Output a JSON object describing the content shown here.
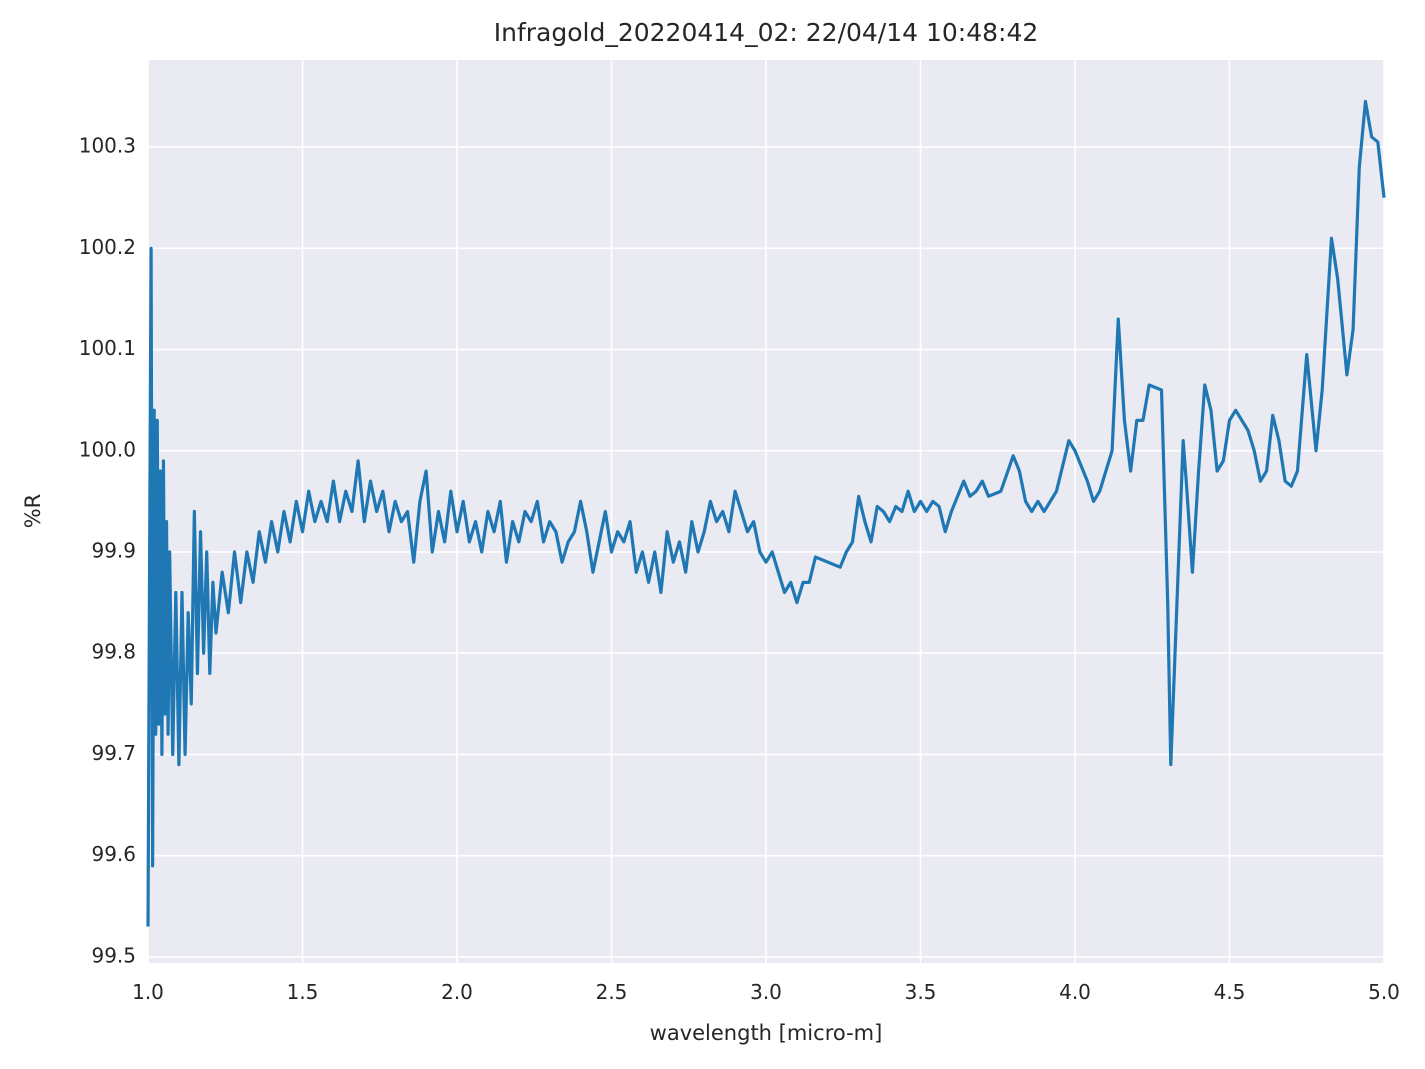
{
  "chart_data": {
    "type": "line",
    "title": "Infragold_20220414_02:  22/04/14 10:48:42",
    "xlabel": "wavelength [micro-m]",
    "ylabel": "%R",
    "xlim": [
      1.0,
      5.0
    ],
    "ylim": [
      99.494,
      100.386
    ],
    "xticks": [
      {
        "value": 1.0,
        "label": "1.0"
      },
      1.5,
      {
        "value": 2.0,
        "label": "2.0"
      },
      2.5,
      {
        "value": 3.0,
        "label": "3.0"
      },
      3.5,
      {
        "value": 4.0,
        "label": "4.0"
      },
      4.5,
      {
        "value": 5.0,
        "label": "5.0"
      }
    ],
    "yticks": [
      99.5,
      99.6,
      99.7,
      99.8,
      99.9,
      {
        "value": 100.0,
        "label": "100.0"
      },
      100.1,
      100.2,
      100.3
    ],
    "grid": true,
    "x": [
      1.0,
      1.005,
      1.01,
      1.015,
      1.02,
      1.025,
      1.03,
      1.035,
      1.04,
      1.045,
      1.05,
      1.055,
      1.06,
      1.065,
      1.07,
      1.08,
      1.09,
      1.1,
      1.11,
      1.12,
      1.13,
      1.14,
      1.15,
      1.16,
      1.17,
      1.18,
      1.19,
      1.2,
      1.21,
      1.22,
      1.24,
      1.26,
      1.28,
      1.3,
      1.32,
      1.34,
      1.36,
      1.38,
      1.4,
      1.42,
      1.44,
      1.46,
      1.48,
      1.5,
      1.52,
      1.54,
      1.56,
      1.58,
      1.6,
      1.62,
      1.64,
      1.66,
      1.68,
      1.7,
      1.72,
      1.74,
      1.76,
      1.78,
      1.8,
      1.82,
      1.84,
      1.86,
      1.88,
      1.9,
      1.92,
      1.94,
      1.96,
      1.98,
      2.0,
      2.02,
      2.04,
      2.06,
      2.08,
      2.1,
      2.12,
      2.14,
      2.16,
      2.18,
      2.2,
      2.22,
      2.24,
      2.26,
      2.28,
      2.3,
      2.32,
      2.34,
      2.36,
      2.38,
      2.4,
      2.42,
      2.44,
      2.46,
      2.48,
      2.5,
      2.52,
      2.54,
      2.56,
      2.58,
      2.6,
      2.62,
      2.64,
      2.66,
      2.68,
      2.7,
      2.72,
      2.74,
      2.76,
      2.78,
      2.8,
      2.82,
      2.84,
      2.86,
      2.88,
      2.9,
      2.92,
      2.94,
      2.96,
      2.98,
      3.0,
      3.02,
      3.04,
      3.06,
      3.08,
      3.1,
      3.12,
      3.14,
      3.16,
      3.2,
      3.24,
      3.26,
      3.28,
      3.3,
      3.32,
      3.34,
      3.36,
      3.38,
      3.4,
      3.42,
      3.44,
      3.46,
      3.48,
      3.5,
      3.52,
      3.54,
      3.56,
      3.58,
      3.6,
      3.64,
      3.66,
      3.68,
      3.7,
      3.72,
      3.76,
      3.8,
      3.82,
      3.84,
      3.86,
      3.88,
      3.9,
      3.94,
      3.98,
      4.0,
      4.04,
      4.06,
      4.08,
      4.1,
      4.12,
      4.14,
      4.16,
      4.18,
      4.2,
      4.22,
      4.24,
      4.28,
      4.3,
      4.31,
      4.33,
      4.35,
      4.36,
      4.38,
      4.4,
      4.42,
      4.44,
      4.46,
      4.48,
      4.5,
      4.52,
      4.54,
      4.56,
      4.58,
      4.6,
      4.62,
      4.64,
      4.66,
      4.68,
      4.7,
      4.72,
      4.75,
      4.78,
      4.8,
      4.83,
      4.85,
      4.88,
      4.9,
      4.92,
      4.94,
      4.96,
      4.98,
      5.0
    ],
    "series": [
      {
        "name": "%R",
        "color": "#1f77b4",
        "values": [
          99.53,
          99.88,
          100.2,
          99.59,
          100.04,
          99.72,
          100.03,
          99.73,
          99.98,
          99.7,
          99.99,
          99.74,
          99.93,
          99.72,
          99.9,
          99.7,
          99.86,
          99.69,
          99.86,
          99.7,
          99.84,
          99.75,
          99.94,
          99.78,
          99.92,
          99.8,
          99.9,
          99.78,
          99.87,
          99.82,
          99.88,
          99.84,
          99.9,
          99.85,
          99.9,
          99.87,
          99.92,
          99.89,
          99.93,
          99.9,
          99.94,
          99.91,
          99.95,
          99.92,
          99.96,
          99.93,
          99.95,
          99.93,
          99.97,
          99.93,
          99.96,
          99.94,
          99.99,
          99.93,
          99.97,
          99.94,
          99.96,
          99.92,
          99.95,
          99.93,
          99.94,
          99.89,
          99.95,
          99.98,
          99.9,
          99.94,
          99.91,
          99.96,
          99.92,
          99.95,
          99.91,
          99.93,
          99.9,
          99.94,
          99.92,
          99.95,
          99.89,
          99.93,
          99.91,
          99.94,
          99.93,
          99.95,
          99.91,
          99.93,
          99.92,
          99.89,
          99.91,
          99.92,
          99.95,
          99.92,
          99.88,
          99.91,
          99.94,
          99.9,
          99.92,
          99.91,
          99.93,
          99.88,
          99.9,
          99.87,
          99.9,
          99.86,
          99.92,
          99.89,
          99.91,
          99.88,
          99.93,
          99.9,
          99.92,
          99.95,
          99.93,
          99.94,
          99.92,
          99.96,
          99.94,
          99.92,
          99.93,
          99.9,
          99.89,
          99.9,
          99.88,
          99.86,
          99.87,
          99.85,
          99.87,
          99.87,
          99.895,
          99.89,
          99.885,
          99.9,
          99.91,
          99.955,
          99.93,
          99.91,
          99.945,
          99.94,
          99.93,
          99.945,
          99.94,
          99.96,
          99.94,
          99.95,
          99.94,
          99.95,
          99.945,
          99.92,
          99.94,
          99.97,
          99.955,
          99.96,
          99.97,
          99.955,
          99.96,
          99.995,
          99.98,
          99.95,
          99.94,
          99.95,
          99.94,
          99.96,
          100.01,
          100.0,
          99.97,
          99.95,
          99.96,
          99.98,
          100.0,
          100.13,
          100.03,
          99.98,
          100.03,
          100.03,
          100.065,
          100.06,
          99.85,
          99.69,
          99.85,
          100.01,
          99.97,
          99.88,
          99.98,
          100.065,
          100.04,
          99.98,
          99.99,
          100.03,
          100.04,
          100.03,
          100.02,
          100.0,
          99.97,
          99.98,
          100.035,
          100.01,
          99.97,
          99.965,
          99.98,
          100.095,
          100.0,
          100.06,
          100.21,
          100.17,
          100.075,
          100.12,
          100.28,
          100.345,
          100.31,
          100.305,
          100.25
        ]
      }
    ]
  }
}
